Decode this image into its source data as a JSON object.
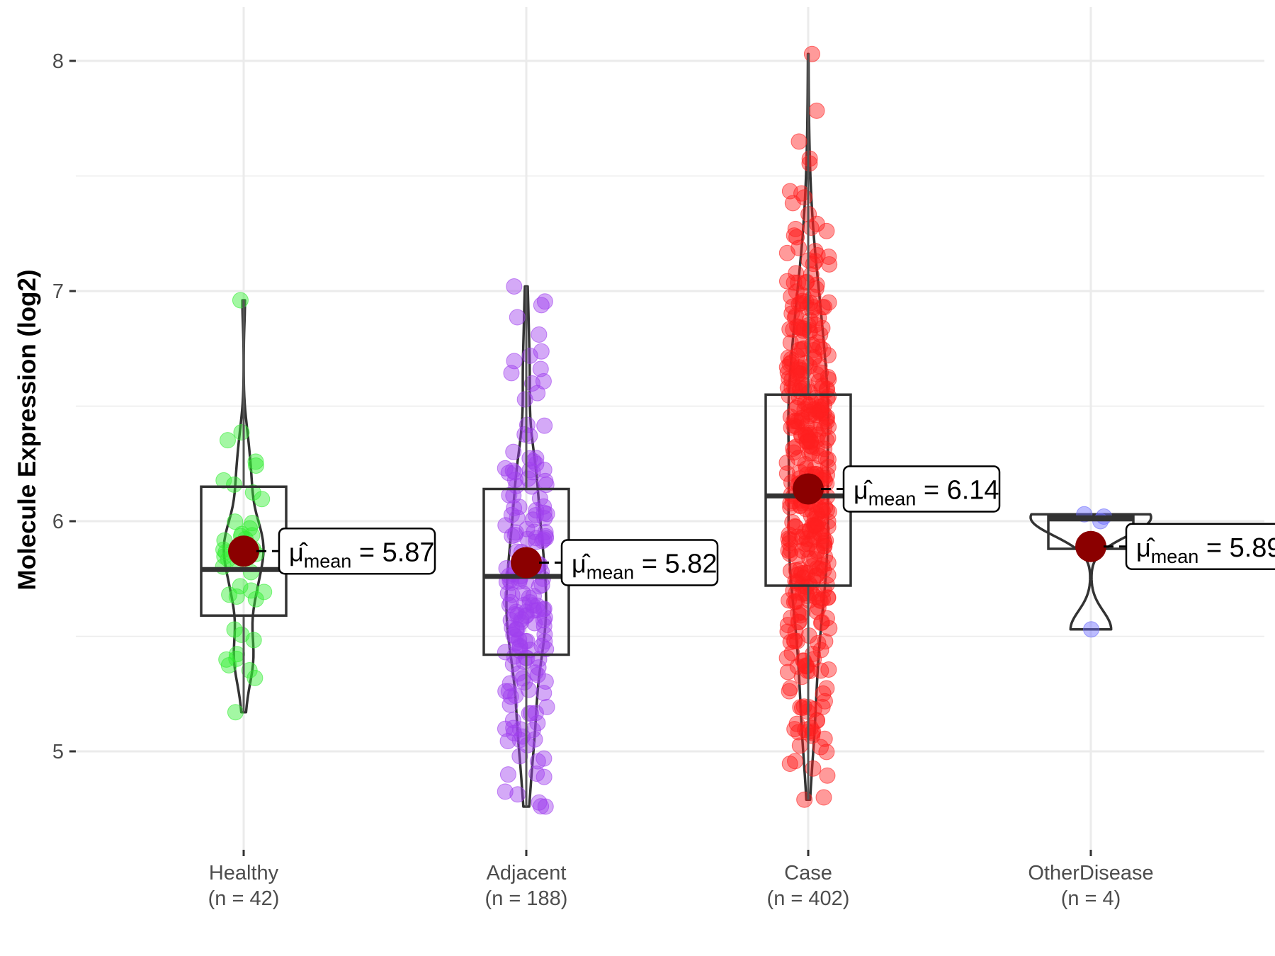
{
  "chart_data": {
    "type": "violin-box-jitter",
    "title": "",
    "xlabel": "",
    "ylabel": "Molecule Expression (log2)",
    "ylim": [
      4.6,
      8.2
    ],
    "yticks": [
      5,
      6,
      7,
      8
    ],
    "grid": true,
    "legend": "none",
    "categories": [
      "Healthy",
      "Adjacent",
      "Case",
      "OtherDisease"
    ],
    "category_labels": [
      {
        "name": "Healthy",
        "n_label": "(n = 42)"
      },
      {
        "name": "Adjacent",
        "n_label": "(n = 188)"
      },
      {
        "name": "Case",
        "n_label": "(n = 402)"
      },
      {
        "name": "OtherDisease",
        "n_label": "(n = 4)"
      }
    ],
    "series": [
      {
        "name": "Healthy",
        "n": 42,
        "color": "#33ee33",
        "min": 5.17,
        "q1": 5.59,
        "median": 5.79,
        "q3": 6.15,
        "max": 6.96,
        "mean": 5.87,
        "mean_label": "5.87"
      },
      {
        "name": "Adjacent",
        "n": 188,
        "color": "#a040ee",
        "min": 4.76,
        "q1": 5.42,
        "median": 5.76,
        "q3": 6.14,
        "max": 7.02,
        "mean": 5.82,
        "mean_label": "5.82"
      },
      {
        "name": "Case",
        "n": 402,
        "color": "#ff2020",
        "min": 4.79,
        "q1": 5.72,
        "median": 6.11,
        "q3": 6.55,
        "max": 8.03,
        "mean": 6.14,
        "mean_label": "6.14"
      },
      {
        "name": "OtherDisease",
        "n": 4,
        "color": "#6a6aff",
        "min": 5.53,
        "q1": 5.88,
        "median": 6.01,
        "q3": 6.02,
        "max": 6.03,
        "mean": 5.89,
        "mean_label": "5.89",
        "points": [
          6.03,
          6.02,
          6.0,
          5.53
        ]
      }
    ],
    "mean_symbol": "μ̂",
    "mean_subscript": "mean",
    "mean_point_color": "#8b0000"
  }
}
